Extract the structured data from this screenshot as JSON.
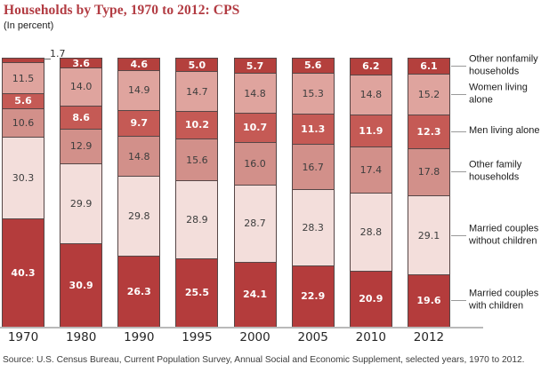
{
  "title": "Households by Type, 1970 to 2012: CPS",
  "subtitle": "(In percent)",
  "source": "Source: U.S. Census Bureau, Current Population Survey, Annual Social and Economic Supplement, selected years, 1970 to 2012.",
  "colors": {
    "title_red": "#b23b42",
    "axis_line": "#b9b9b9",
    "segment_border": "#564646",
    "legend_tick": "#999999"
  },
  "chart_data": {
    "type": "bar",
    "stacked": true,
    "unit": "percent",
    "title": "Households by Type, 1970 to 2012: CPS",
    "xlabel": "",
    "ylabel": "",
    "ylim": [
      0,
      100
    ],
    "grid": false,
    "legend_position": "right",
    "series_order": "bottom-to-top",
    "categories": [
      "1970",
      "1980",
      "1990",
      "1995",
      "2000",
      "2005",
      "2010",
      "2012"
    ],
    "series": [
      {
        "name": "Married couples with children",
        "legend_lines": [
          "Married couples",
          "with children"
        ],
        "color": "#b43c3c",
        "label_style": "light",
        "values": [
          40.3,
          30.9,
          26.3,
          25.5,
          24.1,
          22.9,
          20.9,
          19.6
        ]
      },
      {
        "name": "Married couples without children",
        "legend_lines": [
          "Married couples",
          "without children"
        ],
        "color": "#f3dedb",
        "label_style": "dark",
        "values": [
          30.3,
          29.9,
          29.8,
          28.9,
          28.7,
          28.3,
          28.8,
          29.1
        ]
      },
      {
        "name": "Other family households",
        "legend_lines": [
          "Other family",
          "households"
        ],
        "color": "#d2908a",
        "label_style": "dark",
        "values": [
          10.6,
          12.9,
          14.8,
          15.6,
          16.0,
          16.7,
          17.4,
          17.8
        ]
      },
      {
        "name": "Men living alone",
        "legend_lines": [
          "Men living alone"
        ],
        "color": "#c55a55",
        "label_style": "light",
        "values": [
          5.6,
          8.6,
          9.7,
          10.2,
          10.7,
          11.3,
          11.9,
          12.3
        ]
      },
      {
        "name": "Women living alone",
        "legend_lines": [
          "Women living",
          "alone"
        ],
        "color": "#dfa49e",
        "label_style": "dark",
        "values": [
          11.5,
          14.0,
          14.9,
          14.7,
          14.8,
          15.3,
          14.8,
          15.2
        ]
      },
      {
        "name": "Other nonfamily households",
        "legend_lines": [
          "Other nonfamily",
          "households"
        ],
        "color": "#b4403d",
        "label_style": "light",
        "values": [
          1.7,
          3.6,
          4.6,
          5.0,
          5.7,
          5.6,
          6.2,
          6.1
        ]
      }
    ],
    "annotation": {
      "text": "1.7",
      "category": "1970",
      "series": "Other nonfamily households"
    }
  }
}
